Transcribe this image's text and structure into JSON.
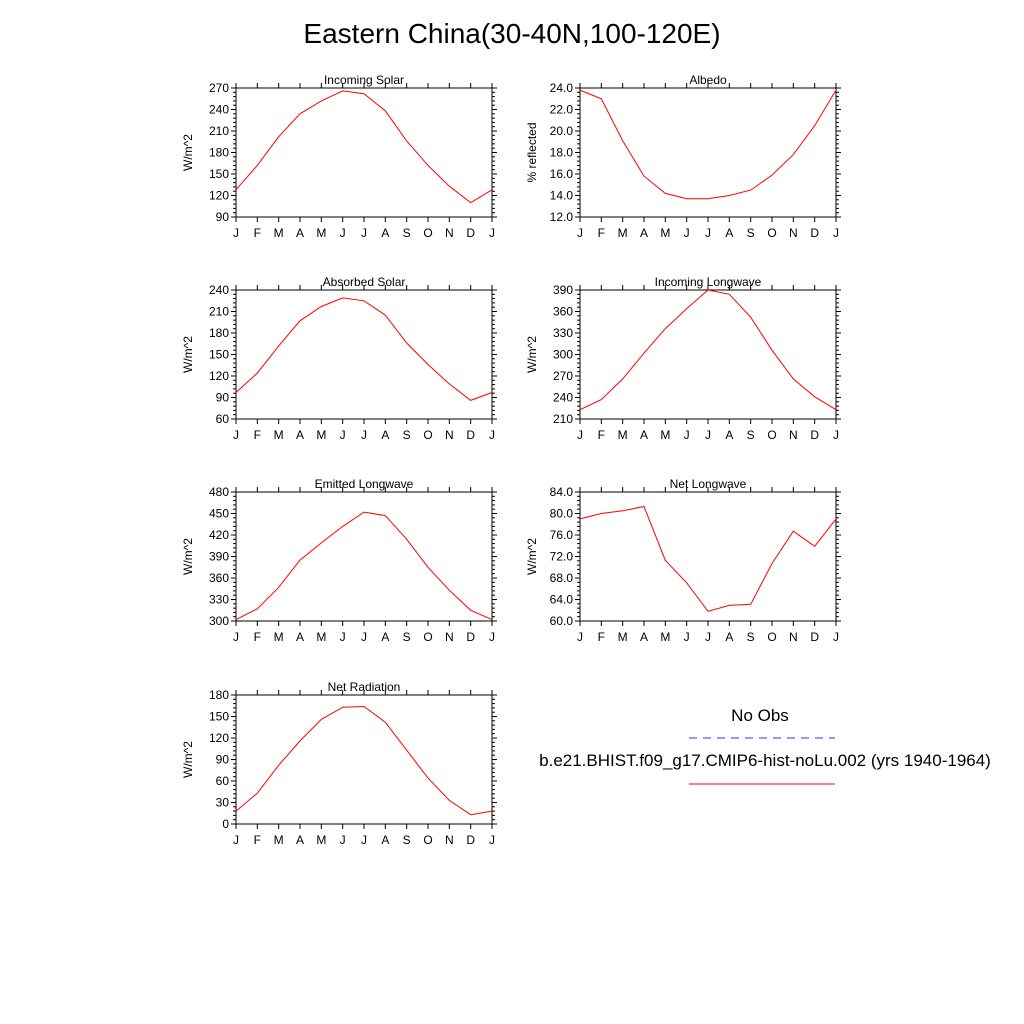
{
  "title": "Eastern China(30-40N,100-120E)",
  "months": [
    "J",
    "F",
    "M",
    "A",
    "M",
    "J",
    "J",
    "A",
    "S",
    "O",
    "N",
    "D",
    "J"
  ],
  "legend": {
    "obs_label": "No Obs",
    "model_label": "b.e21.BHIST.f09_g17.CMIP6-hist-noLu.002 (yrs 1940-1964)",
    "obs_color": "#3333ff",
    "model_color": "#ff0000"
  },
  "chart_data": [
    {
      "type": "line",
      "title": "Incoming Solar",
      "ylabel": "W/m^2",
      "ylim": [
        90,
        270
      ],
      "yticks": [
        "90",
        "120",
        "150",
        "180",
        "210",
        "240",
        "270"
      ],
      "x": [
        "J",
        "F",
        "M",
        "A",
        "M",
        "J",
        "J",
        "A",
        "S",
        "O",
        "N",
        "D",
        "J"
      ],
      "series": [
        {
          "values": [
            128,
            162,
            202,
            234,
            252,
            266,
            262,
            238,
            196,
            162,
            133,
            110,
            128
          ]
        }
      ]
    },
    {
      "type": "line",
      "title": "Albedo",
      "ylabel": "% reflected",
      "ylim": [
        12.0,
        24.0
      ],
      "yticks": [
        "12.0",
        "14.0",
        "16.0",
        "18.0",
        "20.0",
        "22.0",
        "24.0"
      ],
      "x": [
        "J",
        "F",
        "M",
        "A",
        "M",
        "J",
        "J",
        "A",
        "S",
        "O",
        "N",
        "D",
        "J"
      ],
      "series": [
        {
          "values": [
            23.8,
            23.0,
            19.1,
            15.8,
            14.2,
            13.7,
            13.7,
            14.0,
            14.5,
            15.9,
            17.8,
            20.5,
            23.8
          ]
        }
      ]
    },
    {
      "type": "line",
      "title": "Absorbed Solar",
      "ylabel": "W/m^2",
      "ylim": [
        60,
        240
      ],
      "yticks": [
        "60",
        "90",
        "120",
        "150",
        "180",
        "210",
        "240"
      ],
      "x": [
        "J",
        "F",
        "M",
        "A",
        "M",
        "J",
        "J",
        "A",
        "S",
        "O",
        "N",
        "D",
        "J"
      ],
      "series": [
        {
          "values": [
            97,
            124,
            162,
            197,
            217,
            229,
            225,
            205,
            166,
            136,
            109,
            86,
            97
          ]
        }
      ]
    },
    {
      "type": "line",
      "title": "Incoming Longwave",
      "ylabel": "W/m^2",
      "ylim": [
        210,
        390
      ],
      "yticks": [
        "210",
        "240",
        "270",
        "300",
        "330",
        "360",
        "390"
      ],
      "x": [
        "J",
        "F",
        "M",
        "A",
        "M",
        "J",
        "J",
        "A",
        "S",
        "O",
        "N",
        "D",
        "J"
      ],
      "series": [
        {
          "values": [
            223,
            237,
            266,
            302,
            336,
            364,
            390,
            384,
            352,
            306,
            266,
            241,
            223
          ]
        }
      ]
    },
    {
      "type": "line",
      "title": "Emitted Longwave",
      "ylabel": "W/m^2",
      "ylim": [
        300,
        480
      ],
      "yticks": [
        "300",
        "330",
        "360",
        "390",
        "420",
        "450",
        "480"
      ],
      "x": [
        "J",
        "F",
        "M",
        "A",
        "M",
        "J",
        "J",
        "A",
        "S",
        "O",
        "N",
        "D",
        "J"
      ],
      "series": [
        {
          "values": [
            302,
            317,
            347,
            385,
            409,
            432,
            452,
            447,
            414,
            375,
            343,
            315,
            302
          ]
        }
      ]
    },
    {
      "type": "line",
      "title": "Net Longwave",
      "ylabel": "W/m^2",
      "ylim": [
        60.0,
        84.0
      ],
      "yticks": [
        "60.0",
        "64.0",
        "68.0",
        "72.0",
        "76.0",
        "80.0",
        "84.0"
      ],
      "x": [
        "J",
        "F",
        "M",
        "A",
        "M",
        "J",
        "J",
        "A",
        "S",
        "O",
        "N",
        "D",
        "J"
      ],
      "series": [
        {
          "values": [
            79.0,
            80.0,
            80.5,
            81.3,
            71.3,
            67.1,
            61.8,
            62.9,
            63.1,
            70.7,
            76.7,
            73.9,
            79.0
          ]
        }
      ]
    },
    {
      "type": "line",
      "title": "Net Radiation",
      "ylabel": "W/m^2",
      "ylim": [
        0,
        180
      ],
      "yticks": [
        "0",
        "30",
        "60",
        "90",
        "120",
        "150",
        "180"
      ],
      "x": [
        "J",
        "F",
        "M",
        "A",
        "M",
        "J",
        "J",
        "A",
        "S",
        "O",
        "N",
        "D",
        "J"
      ],
      "series": [
        {
          "values": [
            18,
            43,
            82,
            116,
            146,
            163,
            164,
            142,
            103,
            64,
            33,
            13,
            18
          ]
        }
      ]
    }
  ]
}
